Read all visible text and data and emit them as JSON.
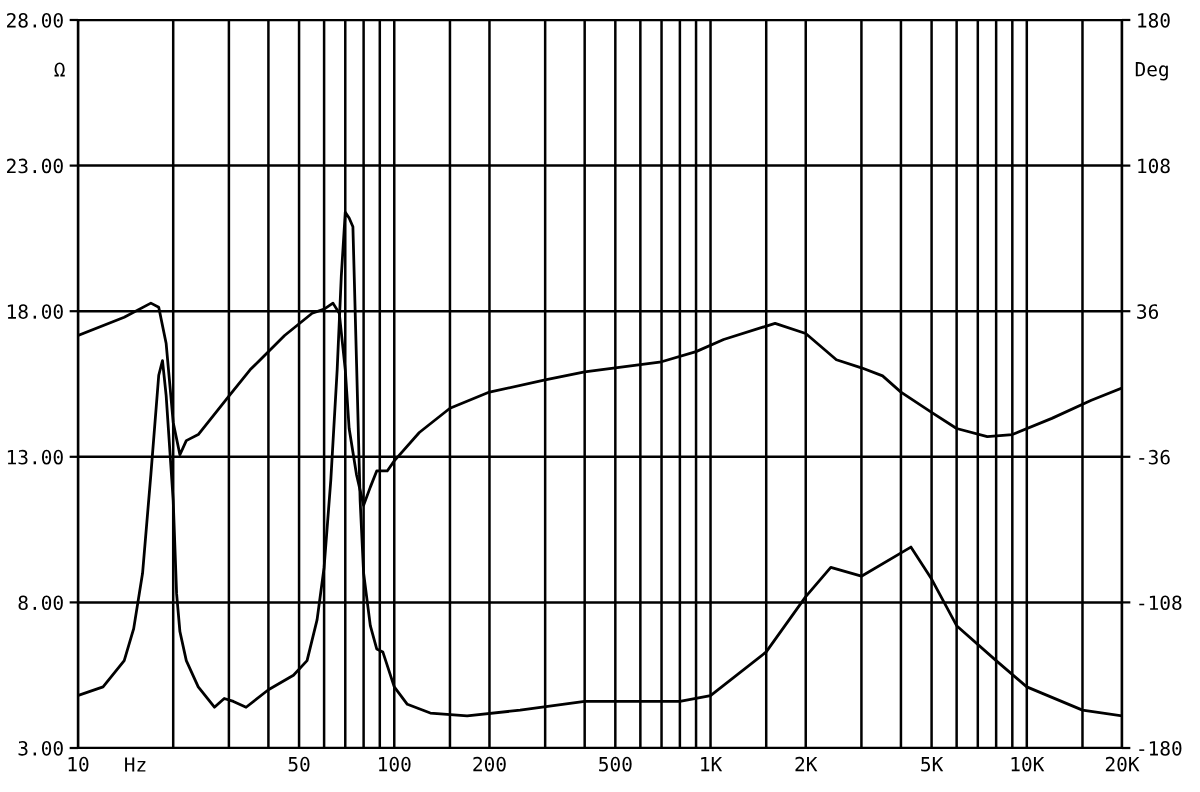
{
  "chart_data": {
    "type": "line",
    "xlabel": "Hz",
    "ylabel": "Ω",
    "y2label": "Deg",
    "log": "x",
    "grid": true,
    "marker": "none",
    "line_style": "solid",
    "xlim": [
      10,
      20000
    ],
    "ylim": [
      3,
      28
    ],
    "y2lim": [
      -180,
      180
    ],
    "xticks": [
      {
        "value": 10,
        "label": "10"
      },
      {
        "value": 20,
        "label": null
      },
      {
        "value": 30,
        "label": null
      },
      {
        "value": 40,
        "label": null
      },
      {
        "value": 50,
        "label": "50"
      },
      {
        "value": 60,
        "label": null
      },
      {
        "value": 70,
        "label": null
      },
      {
        "value": 80,
        "label": null
      },
      {
        "value": 90,
        "label": null
      },
      {
        "value": 100,
        "label": "100"
      },
      {
        "value": 150,
        "label": null
      },
      {
        "value": 200,
        "label": "200"
      },
      {
        "value": 300,
        "label": null
      },
      {
        "value": 400,
        "label": null
      },
      {
        "value": 500,
        "label": "500"
      },
      {
        "value": 600,
        "label": null
      },
      {
        "value": 700,
        "label": null
      },
      {
        "value": 800,
        "label": null
      },
      {
        "value": 900,
        "label": null
      },
      {
        "value": 1000,
        "label": "1K"
      },
      {
        "value": 1500,
        "label": null
      },
      {
        "value": 2000,
        "label": "2K"
      },
      {
        "value": 3000,
        "label": null
      },
      {
        "value": 4000,
        "label": null
      },
      {
        "value": 5000,
        "label": "5K"
      },
      {
        "value": 6000,
        "label": null
      },
      {
        "value": 7000,
        "label": null
      },
      {
        "value": 8000,
        "label": null
      },
      {
        "value": 9000,
        "label": null
      },
      {
        "value": 10000,
        "label": "10K"
      },
      {
        "value": 15000,
        "label": null
      },
      {
        "value": 20000,
        "label": "20K"
      }
    ],
    "yticks": [
      {
        "value": 3,
        "label": "3.00"
      },
      {
        "value": 8,
        "label": "8.00"
      },
      {
        "value": 13,
        "label": "13.00"
      },
      {
        "value": 18,
        "label": "18.00"
      },
      {
        "value": 23,
        "label": "23.00"
      },
      {
        "value": 28,
        "label": "28.00"
      }
    ],
    "y2ticks": [
      {
        "value": -180,
        "label": "-180"
      },
      {
        "value": -108,
        "label": "-108"
      },
      {
        "value": -36,
        "label": "-36"
      },
      {
        "value": 36,
        "label": "36"
      },
      {
        "value": 108,
        "label": "108"
      },
      {
        "value": 180,
        "label": "180"
      }
    ],
    "series": [
      {
        "color": "#000000",
        "x": [
          10,
          12,
          14,
          15,
          16,
          17,
          18,
          18.5,
          19,
          20,
          20.5,
          21,
          22,
          24,
          27,
          29,
          31,
          34,
          40,
          48,
          53,
          57,
          60,
          63,
          66,
          68,
          70,
          72,
          74,
          76,
          78,
          80,
          84,
          88,
          92,
          100,
          110,
          130,
          170,
          250,
          400,
          500,
          800,
          1000,
          1500,
          2000,
          2400,
          3000,
          4300,
          5000,
          6000,
          8000,
          10000,
          15000,
          20000
        ],
        "values": [
          4.8,
          5.1,
          6.0,
          7.1,
          9.0,
          12.4,
          15.8,
          16.3,
          15.1,
          11.5,
          8.3,
          7.0,
          6.0,
          5.1,
          4.4,
          4.7,
          4.6,
          4.4,
          5.0,
          5.5,
          6.0,
          7.4,
          9.2,
          12.2,
          16.0,
          19.2,
          21.4,
          21.2,
          20.9,
          16.2,
          11.5,
          9.0,
          7.2,
          6.4,
          6.3,
          5.1,
          4.5,
          4.2,
          4.1,
          4.3,
          4.6,
          4.6,
          4.6,
          4.8,
          6.3,
          8.2,
          9.2,
          8.9,
          9.9,
          8.8,
          7.2,
          6.0,
          5.1,
          4.3,
          4.1
        ]
      },
      {
        "color": "#000000",
        "axis": "y2",
        "x": [
          10,
          14,
          17,
          18,
          19,
          20,
          21,
          22,
          24,
          30,
          35,
          45,
          55,
          60,
          64,
          67,
          70,
          72,
          76,
          80,
          84,
          88,
          95,
          100,
          120,
          150,
          200,
          300,
          400,
          500,
          700,
          900,
          1100,
          1600,
          2000,
          2500,
          3000,
          3500,
          4000,
          5000,
          6000,
          7500,
          9000,
          12000,
          16000,
          20000
        ],
        "values": [
          24,
          33,
          40,
          38,
          20,
          -19,
          -35,
          -28,
          -25,
          -6,
          7,
          24,
          35,
          37,
          40,
          35,
          7,
          -22,
          -45,
          -60,
          -51,
          -43,
          -43,
          -38,
          -24,
          -12,
          -4,
          2,
          6,
          8,
          11,
          16,
          22,
          30,
          25,
          12,
          8,
          4,
          -4,
          -14,
          -22,
          -26,
          -25,
          -17,
          -8,
          -2
        ]
      }
    ]
  }
}
